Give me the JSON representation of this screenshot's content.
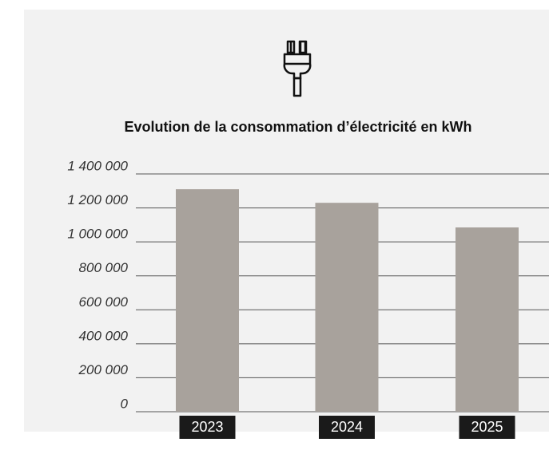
{
  "chart_data": {
    "type": "bar",
    "title": "Evolution de la consommation d’électricité en kWh",
    "categories": [
      "2023",
      "2024",
      "2025"
    ],
    "values": [
      1310000,
      1230000,
      1085000
    ],
    "color": "#a8a29c",
    "ylim": [
      0,
      1400000
    ],
    "yticks": [
      0,
      {
        "value": 200000,
        "label": "200 000"
      },
      {
        "value": 400000,
        "label": "400 000"
      },
      {
        "value": 600000,
        "label": "600 000"
      },
      {
        "value": 800000,
        "label": "800 000"
      },
      {
        "value": 1000000,
        "label": "1 000 000"
      },
      {
        "value": 1200000,
        "label": "1 200 000"
      },
      {
        "value": 1400000,
        "label": "1 400 000"
      }
    ],
    "grid": true
  }
}
